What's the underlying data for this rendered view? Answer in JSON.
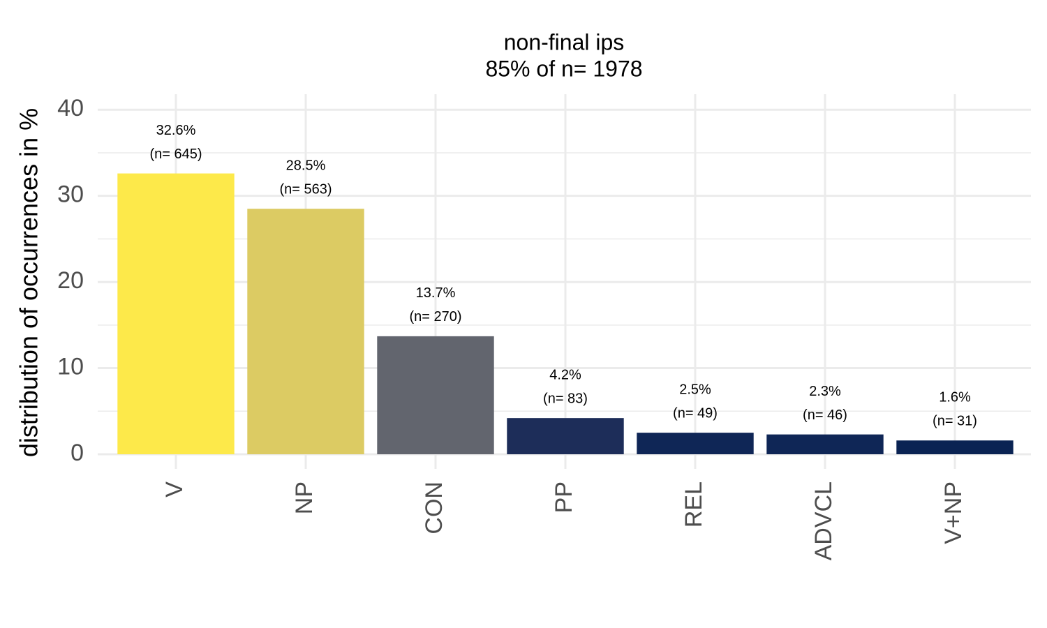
{
  "chart_data": {
    "type": "bar",
    "title": "non-final ips",
    "subtitle": "85% of n= 1978",
    "y_label": "distribution of occurrences in %",
    "categories": [
      "V",
      "NP",
      "CON",
      "PP",
      "REL",
      "ADVCL",
      "V+NP"
    ],
    "values": [
      32.6,
      28.5,
      13.7,
      4.2,
      2.5,
      2.3,
      1.6
    ],
    "value_labels": [
      "32.6%",
      "28.5%",
      "13.7%",
      "4.2%",
      "2.5%",
      "2.3%",
      "1.6%"
    ],
    "n_labels": [
      "(n= 645)",
      "(n= 563)",
      "(n= 270)",
      "(n= 83)",
      "(n= 49)",
      "(n= 46)",
      "(n= 31)"
    ],
    "colors": [
      "#fde94a",
      "#dccb63",
      "#62656e",
      "#1d2d59",
      "#0f2656",
      "#0f2656",
      "#0a2353"
    ],
    "ylim": [
      0,
      41.8
    ],
    "yticks": [
      0,
      10,
      20,
      30,
      40
    ],
    "minor_yticks": [
      5,
      15,
      25,
      35
    ],
    "grid": true
  }
}
